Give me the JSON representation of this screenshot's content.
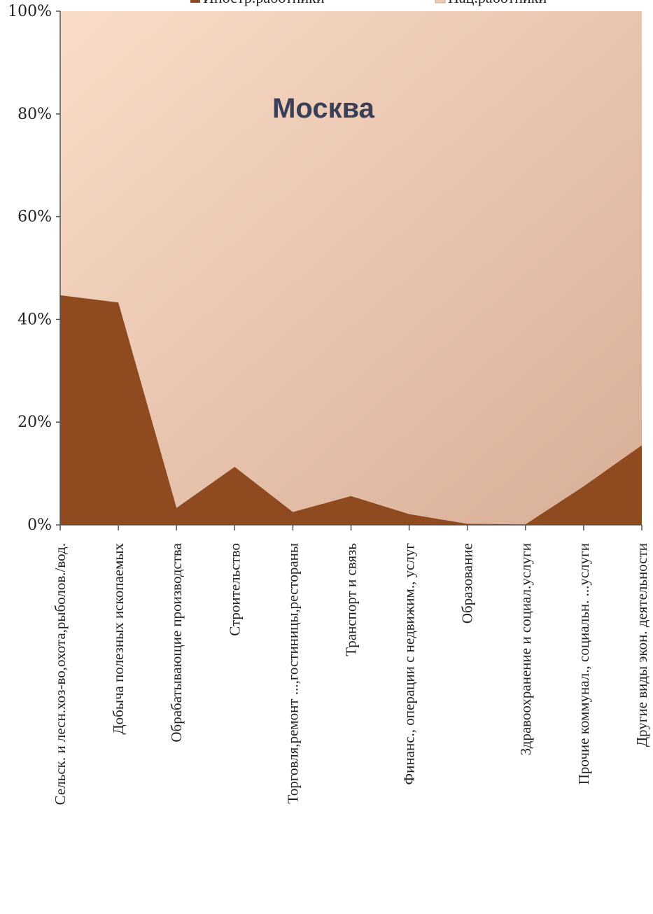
{
  "chart_data": {
    "type": "area",
    "stacked": "percent",
    "title": "Москва",
    "categories": [
      "Сельск. и лесн.хоз-во,охота,рыболов./вод.",
      "Добыча полезных ископаемых",
      "Обрабатывающие производства",
      "Строительство",
      "Торговля,ремонт ...,гостиницы,рестораны",
      "Транспорт и связь",
      "Финанс., операции с недвижим., услуг",
      "Образование",
      "Здравоохранение и социал.услуги",
      "Прочие коммунал., социальн. ...услуги",
      "Другие виды экон. деятельности"
    ],
    "series": [
      {
        "name": "Иностр.работники",
        "color": "#8f4a1f",
        "values": [
          44.7,
          43.3,
          3.3,
          11.3,
          2.5,
          5.6,
          2.1,
          0.2,
          0.1,
          7.5,
          15.5
        ]
      },
      {
        "name": "Нац.работники",
        "color": "#f1cdb4",
        "values": [
          55.3,
          56.7,
          96.7,
          88.7,
          97.5,
          94.4,
          97.9,
          99.8,
          99.9,
          92.5,
          84.5
        ]
      }
    ],
    "ylim": [
      0,
      100
    ],
    "yticks": [
      "0%",
      "20%",
      "40%",
      "60%",
      "80%",
      "100%"
    ],
    "legend_position": "top",
    "grid": false
  }
}
